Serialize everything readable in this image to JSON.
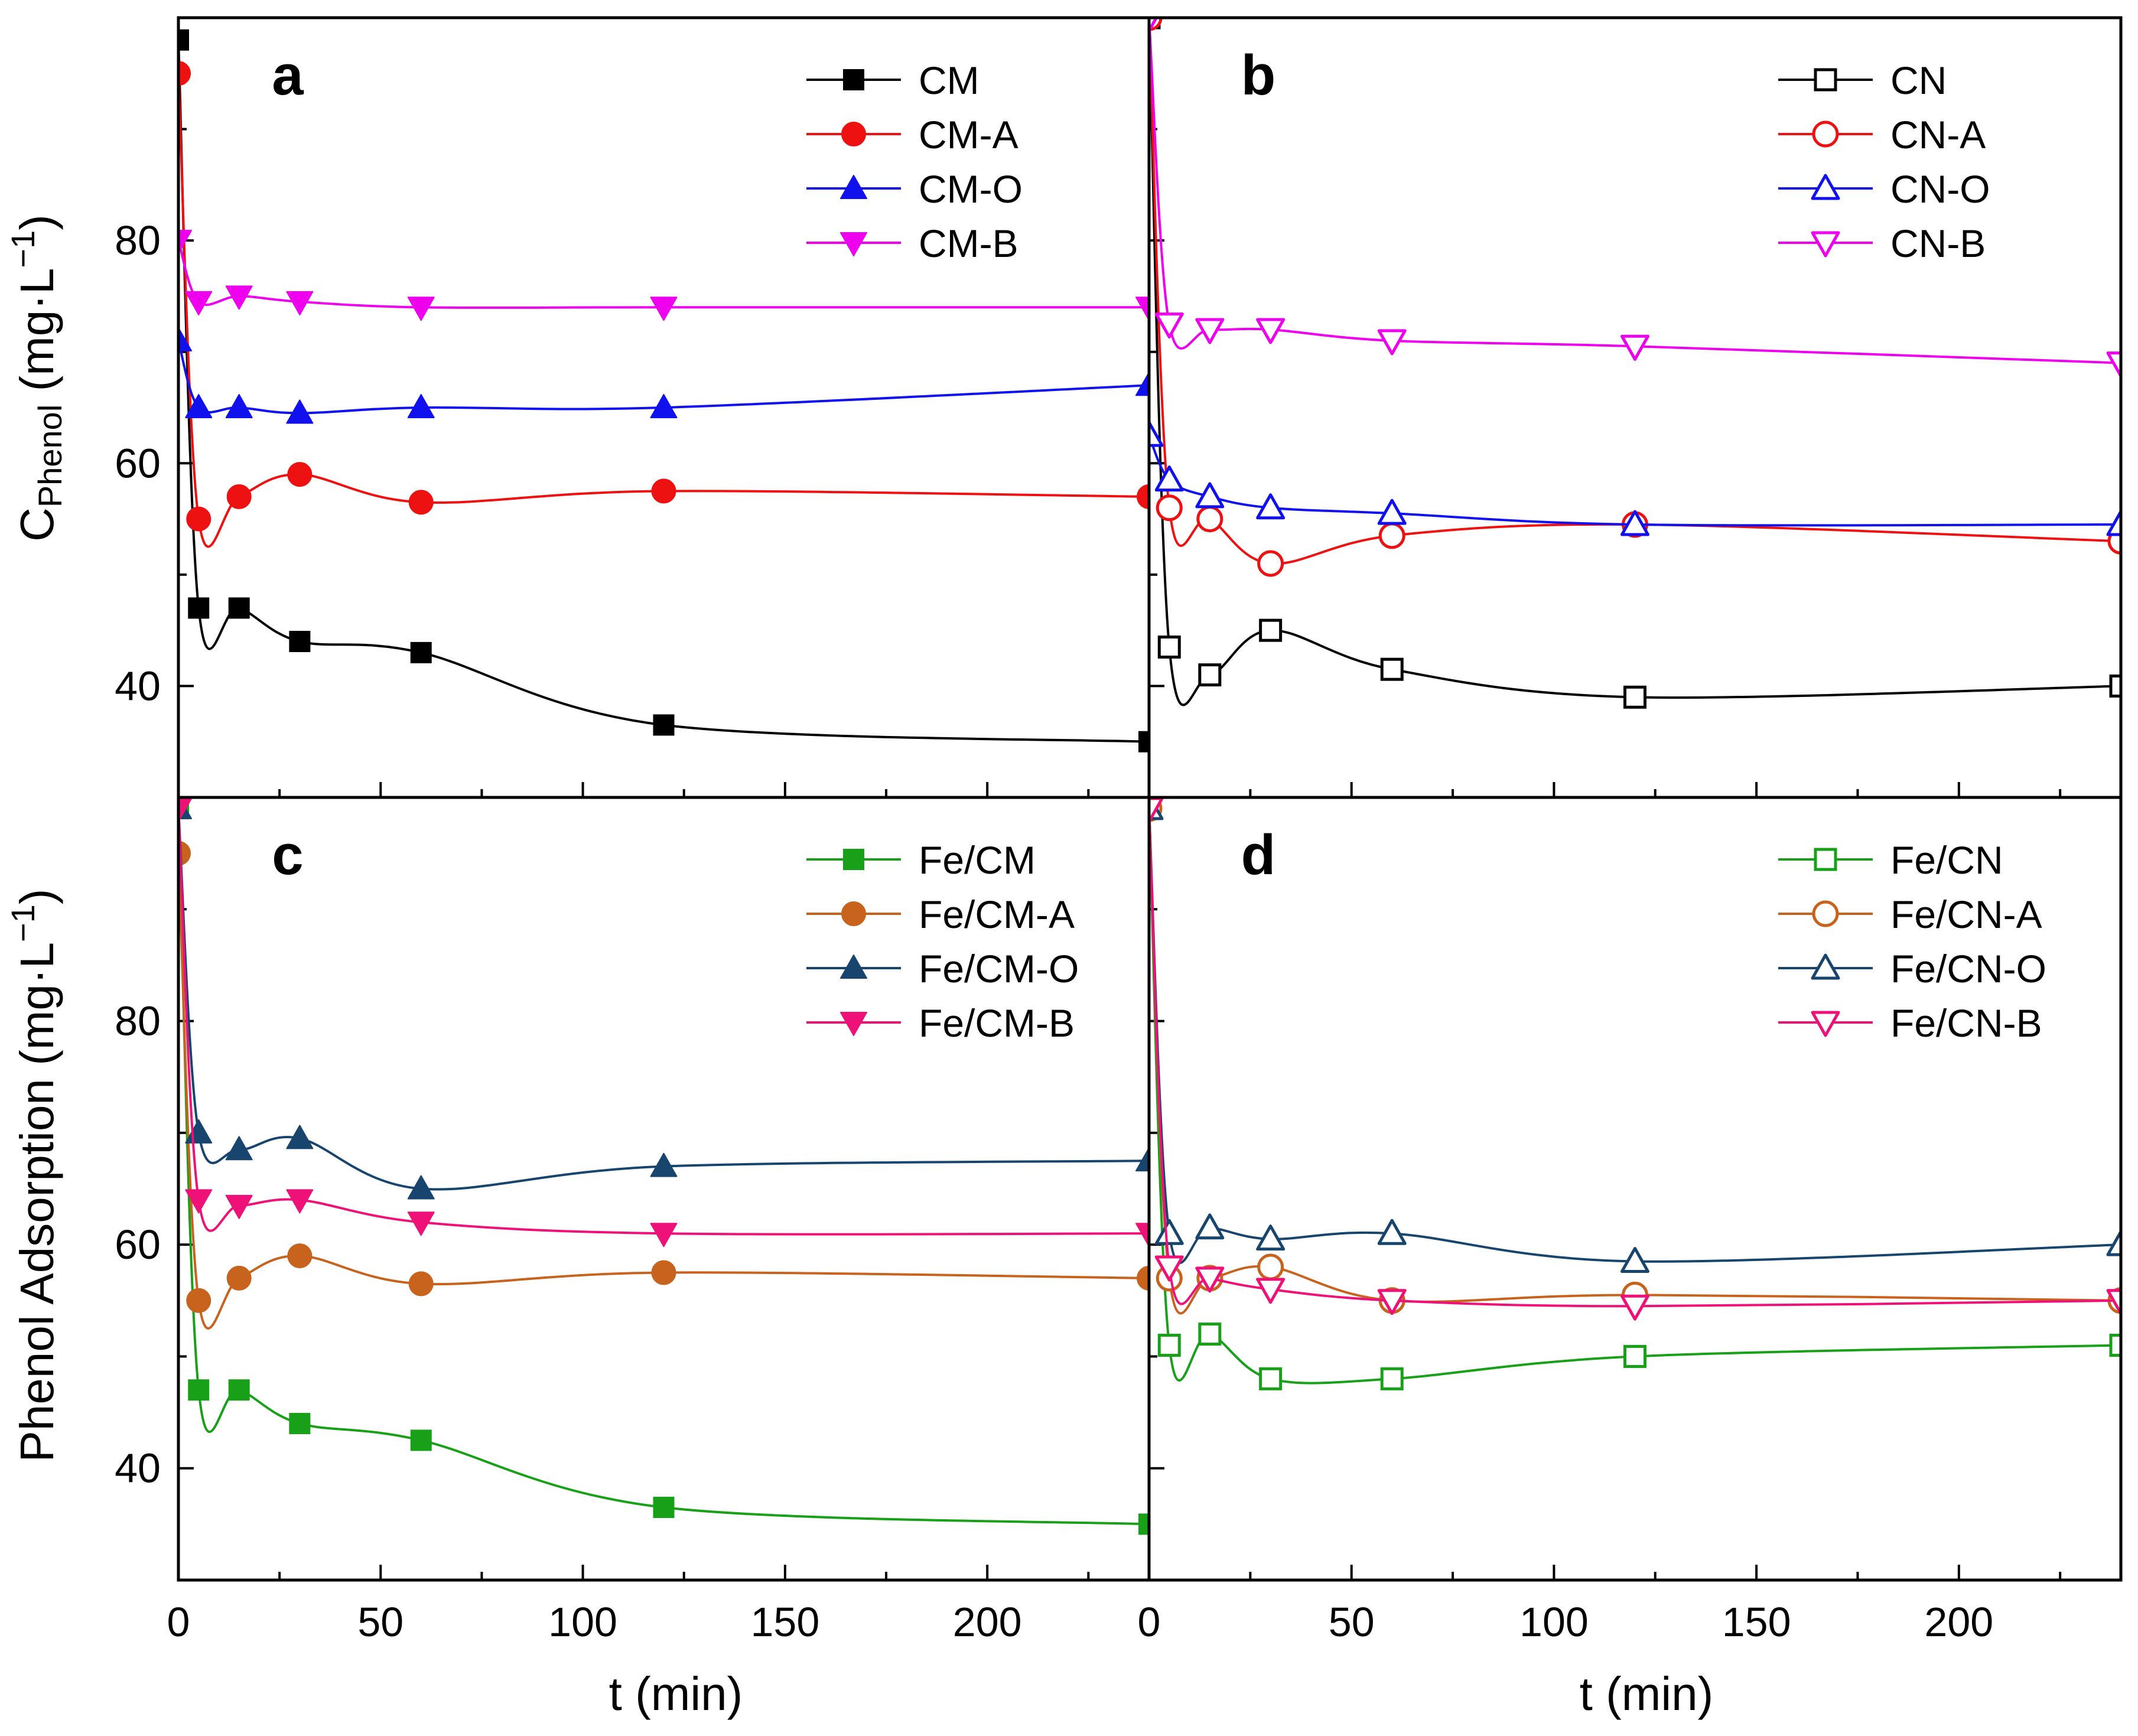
{
  "figure": {
    "xlabel": "t (min)",
    "ylabel_top_main": "C",
    "ylabel_top_sub": "Phenol",
    "ylabel_top_unit": " (mg·L",
    "ylabel_top_sup": "−1",
    "ylabel_top_close": ")",
    "ylabel_bottom": "Phenol Adsorption (mg·L",
    "ylabel_bottom_sup": "−1",
    "ylabel_bottom_close": ")"
  },
  "chart_data": [
    {
      "panel": "a",
      "type": "scatter",
      "xlim": [
        0,
        240
      ],
      "ylim": [
        30,
        100
      ],
      "xticks": [
        0,
        50,
        100,
        150,
        200
      ],
      "yticks": [
        40,
        60,
        80
      ],
      "show_xtick_labels": false,
      "legend_position": "top-right",
      "series": [
        {
          "name": "CM",
          "color": "#000000",
          "marker": "square",
          "filled": true,
          "x": [
            0,
            5,
            15,
            30,
            60,
            120,
            240
          ],
          "y": [
            98,
            47,
            47,
            44,
            43,
            36.5,
            35
          ]
        },
        {
          "name": "CM-A",
          "color": "#ee1111",
          "marker": "circle",
          "filled": true,
          "x": [
            0,
            5,
            15,
            30,
            60,
            120,
            240
          ],
          "y": [
            95,
            55,
            57,
            59,
            56.5,
            57.5,
            57
          ]
        },
        {
          "name": "CM-O",
          "color": "#1111ee",
          "marker": "triangle-up",
          "filled": true,
          "x": [
            0,
            5,
            15,
            30,
            60,
            120,
            240
          ],
          "y": [
            71,
            65,
            65,
            64.5,
            65,
            65,
            67
          ]
        },
        {
          "name": "CM-B",
          "color": "#ee00ee",
          "marker": "triangle-down",
          "filled": true,
          "x": [
            0,
            5,
            15,
            30,
            60,
            120,
            240
          ],
          "y": [
            80,
            74.5,
            75,
            74.5,
            74,
            74,
            74
          ]
        }
      ]
    },
    {
      "panel": "b",
      "type": "scatter",
      "xlim": [
        0,
        240
      ],
      "ylim": [
        30,
        100
      ],
      "xticks": [
        0,
        50,
        100,
        150,
        200
      ],
      "yticks": [
        40,
        60,
        80
      ],
      "show_xtick_labels": false,
      "legend_position": "top-right",
      "series": [
        {
          "name": "CN",
          "color": "#000000",
          "marker": "square",
          "filled": false,
          "x": [
            0,
            5,
            15,
            30,
            60,
            120,
            240
          ],
          "y": [
            100,
            43.5,
            41,
            45,
            41.5,
            39,
            40
          ]
        },
        {
          "name": "CN-A",
          "color": "#ee1111",
          "marker": "circle",
          "filled": false,
          "x": [
            0,
            5,
            15,
            30,
            60,
            120,
            240
          ],
          "y": [
            100,
            56,
            55,
            51,
            53.5,
            54.5,
            53
          ]
        },
        {
          "name": "CN-O",
          "color": "#1111ee",
          "marker": "triangle-up",
          "filled": false,
          "x": [
            0,
            5,
            15,
            30,
            60,
            120,
            240
          ],
          "y": [
            62.5,
            58.5,
            57,
            56,
            55.5,
            54.5,
            54.5
          ]
        },
        {
          "name": "CN-B",
          "color": "#ee00ee",
          "marker": "triangle-down",
          "filled": false,
          "x": [
            0,
            5,
            15,
            30,
            60,
            120,
            240
          ],
          "y": [
            100,
            72.5,
            72,
            72,
            71,
            70.5,
            69
          ]
        }
      ]
    },
    {
      "panel": "c",
      "type": "scatter",
      "xlim": [
        0,
        240
      ],
      "ylim": [
        30,
        100
      ],
      "xticks": [
        0,
        50,
        100,
        150,
        200
      ],
      "yticks": [
        40,
        60,
        80
      ],
      "show_xtick_labels": true,
      "legend_position": "top-right",
      "series": [
        {
          "name": "Fe/CM",
          "color": "#18a018",
          "marker": "square",
          "filled": true,
          "x": [
            0,
            5,
            15,
            30,
            60,
            120,
            240
          ],
          "y": [
            99,
            47,
            47,
            44,
            42.5,
            36.5,
            35
          ]
        },
        {
          "name": "Fe/CM-A",
          "color": "#c8631e",
          "marker": "circle",
          "filled": true,
          "x": [
            0,
            5,
            15,
            30,
            60,
            120,
            240
          ],
          "y": [
            95,
            55,
            57,
            59,
            56.5,
            57.5,
            57
          ]
        },
        {
          "name": "Fe/CM-O",
          "color": "#18456e",
          "marker": "triangle-up",
          "filled": true,
          "x": [
            0,
            5,
            15,
            30,
            60,
            120,
            240
          ],
          "y": [
            99,
            70,
            68.5,
            69.5,
            65,
            67,
            67.5
          ]
        },
        {
          "name": "Fe/CM-B",
          "color": "#ee1177",
          "marker": "triangle-down",
          "filled": true,
          "x": [
            0,
            5,
            15,
            30,
            60,
            120,
            240
          ],
          "y": [
            99,
            64,
            63.5,
            64,
            62,
            61,
            61
          ]
        }
      ]
    },
    {
      "panel": "d",
      "type": "scatter",
      "xlim": [
        0,
        240
      ],
      "ylim": [
        30,
        100
      ],
      "xticks": [
        0,
        50,
        100,
        150,
        200
      ],
      "yticks": [
        40,
        60,
        80
      ],
      "show_xtick_labels": true,
      "legend_position": "top-right",
      "series": [
        {
          "name": "Fe/CN",
          "color": "#18a018",
          "marker": "square",
          "filled": false,
          "x": [
            0,
            5,
            15,
            30,
            60,
            120,
            240
          ],
          "y": [
            99,
            51,
            52,
            48,
            48,
            50,
            51
          ]
        },
        {
          "name": "Fe/CN-A",
          "color": "#c8631e",
          "marker": "circle",
          "filled": false,
          "x": [
            0,
            5,
            15,
            30,
            60,
            120,
            240
          ],
          "y": [
            99,
            57,
            57,
            58,
            55,
            55.5,
            55
          ]
        },
        {
          "name": "Fe/CN-O",
          "color": "#18456e",
          "marker": "triangle-up",
          "filled": false,
          "x": [
            0,
            5,
            15,
            30,
            60,
            120,
            240
          ],
          "y": [
            99,
            61,
            61.5,
            60.5,
            61,
            58.5,
            60
          ]
        },
        {
          "name": "Fe/CN-B",
          "color": "#ee1177",
          "marker": "triangle-down",
          "filled": false,
          "x": [
            0,
            5,
            15,
            30,
            60,
            120,
            240
          ],
          "y": [
            99,
            58,
            57,
            56,
            55,
            54.5,
            55
          ]
        }
      ]
    }
  ]
}
